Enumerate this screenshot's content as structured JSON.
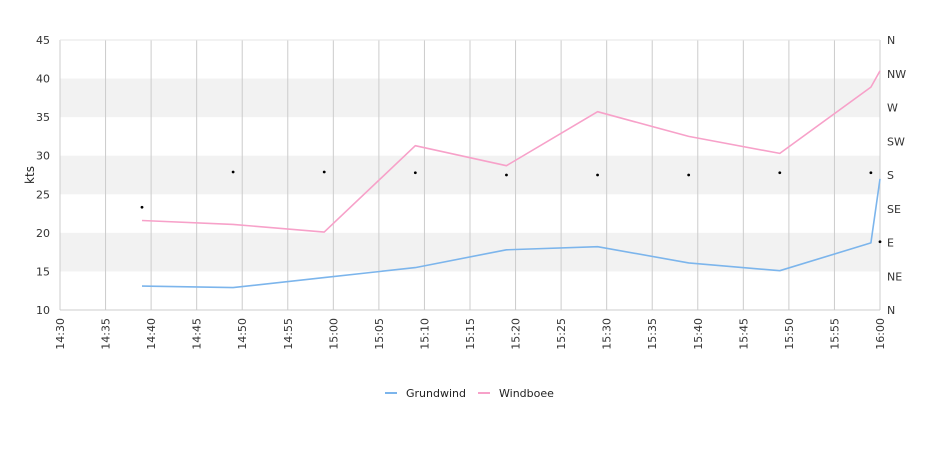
{
  "chart_data": {
    "type": "line",
    "ylabel": "kts",
    "ylim": [
      10,
      45
    ],
    "yticks": [
      "10",
      "15",
      "20",
      "25",
      "30",
      "35",
      "40",
      "45"
    ],
    "x_range": [
      "14:30",
      "16:00"
    ],
    "xticks": [
      "14:30",
      "14:35",
      "14:40",
      "14:45",
      "14:50",
      "14:55",
      "15:00",
      "15:05",
      "15:10",
      "15:15",
      "15:20",
      "15:25",
      "15:30",
      "15:35",
      "15:40",
      "15:45",
      "15:50",
      "15:55",
      "16:00"
    ],
    "y2_ticks": [
      "N",
      "NE",
      "E",
      "SE",
      "S",
      "SW",
      "W",
      "NW",
      "N"
    ],
    "grid": true,
    "alternating_bands": true,
    "legend_position": "bottom-center",
    "series": [
      {
        "name": "Grundwind",
        "color": "#7cb5ec",
        "x": [
          "14:39",
          "14:49",
          "14:59",
          "15:09",
          "15:19",
          "15:29",
          "15:39",
          "15:49",
          "15:59",
          "16:00"
        ],
        "y": [
          13.1,
          12.9,
          14.2,
          15.5,
          17.8,
          18.2,
          16.1,
          15.1,
          18.7,
          27.0
        ]
      },
      {
        "name": "Windboee",
        "color": "#f7a1c9",
        "x": [
          "14:39",
          "14:49",
          "14:59",
          "15:09",
          "15:19",
          "15:29",
          "15:39",
          "15:49",
          "15:59",
          "16:00"
        ],
        "y": [
          21.6,
          21.1,
          20.1,
          31.3,
          28.7,
          35.7,
          32.5,
          30.3,
          38.9,
          41.0
        ]
      }
    ],
    "wind_direction": {
      "x": [
        "14:39",
        "14:49",
        "14:59",
        "15:09",
        "15:19",
        "15:29",
        "15:39",
        "15:49",
        "15:59",
        "16:00"
      ],
      "direction_deg": [
        137,
        184,
        184,
        183,
        180,
        180,
        180,
        183,
        183,
        91
      ]
    }
  }
}
